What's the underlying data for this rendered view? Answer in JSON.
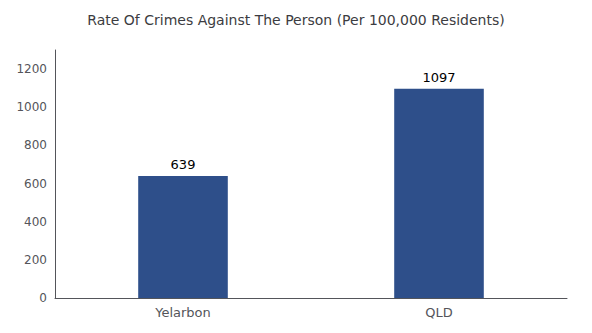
{
  "chart_data": {
    "type": "bar",
    "title": "Rate Of Crimes Against The Person (Per 100,000 Residents)",
    "categories": [
      "Yelarbon",
      "QLD"
    ],
    "values": [
      639,
      1097
    ],
    "color": "#2e4f8a",
    "ylim": [
      0,
      1300
    ],
    "yticks": [
      0,
      200,
      400,
      600,
      800,
      1000,
      1200
    ],
    "grid": false,
    "data_labels": true
  }
}
